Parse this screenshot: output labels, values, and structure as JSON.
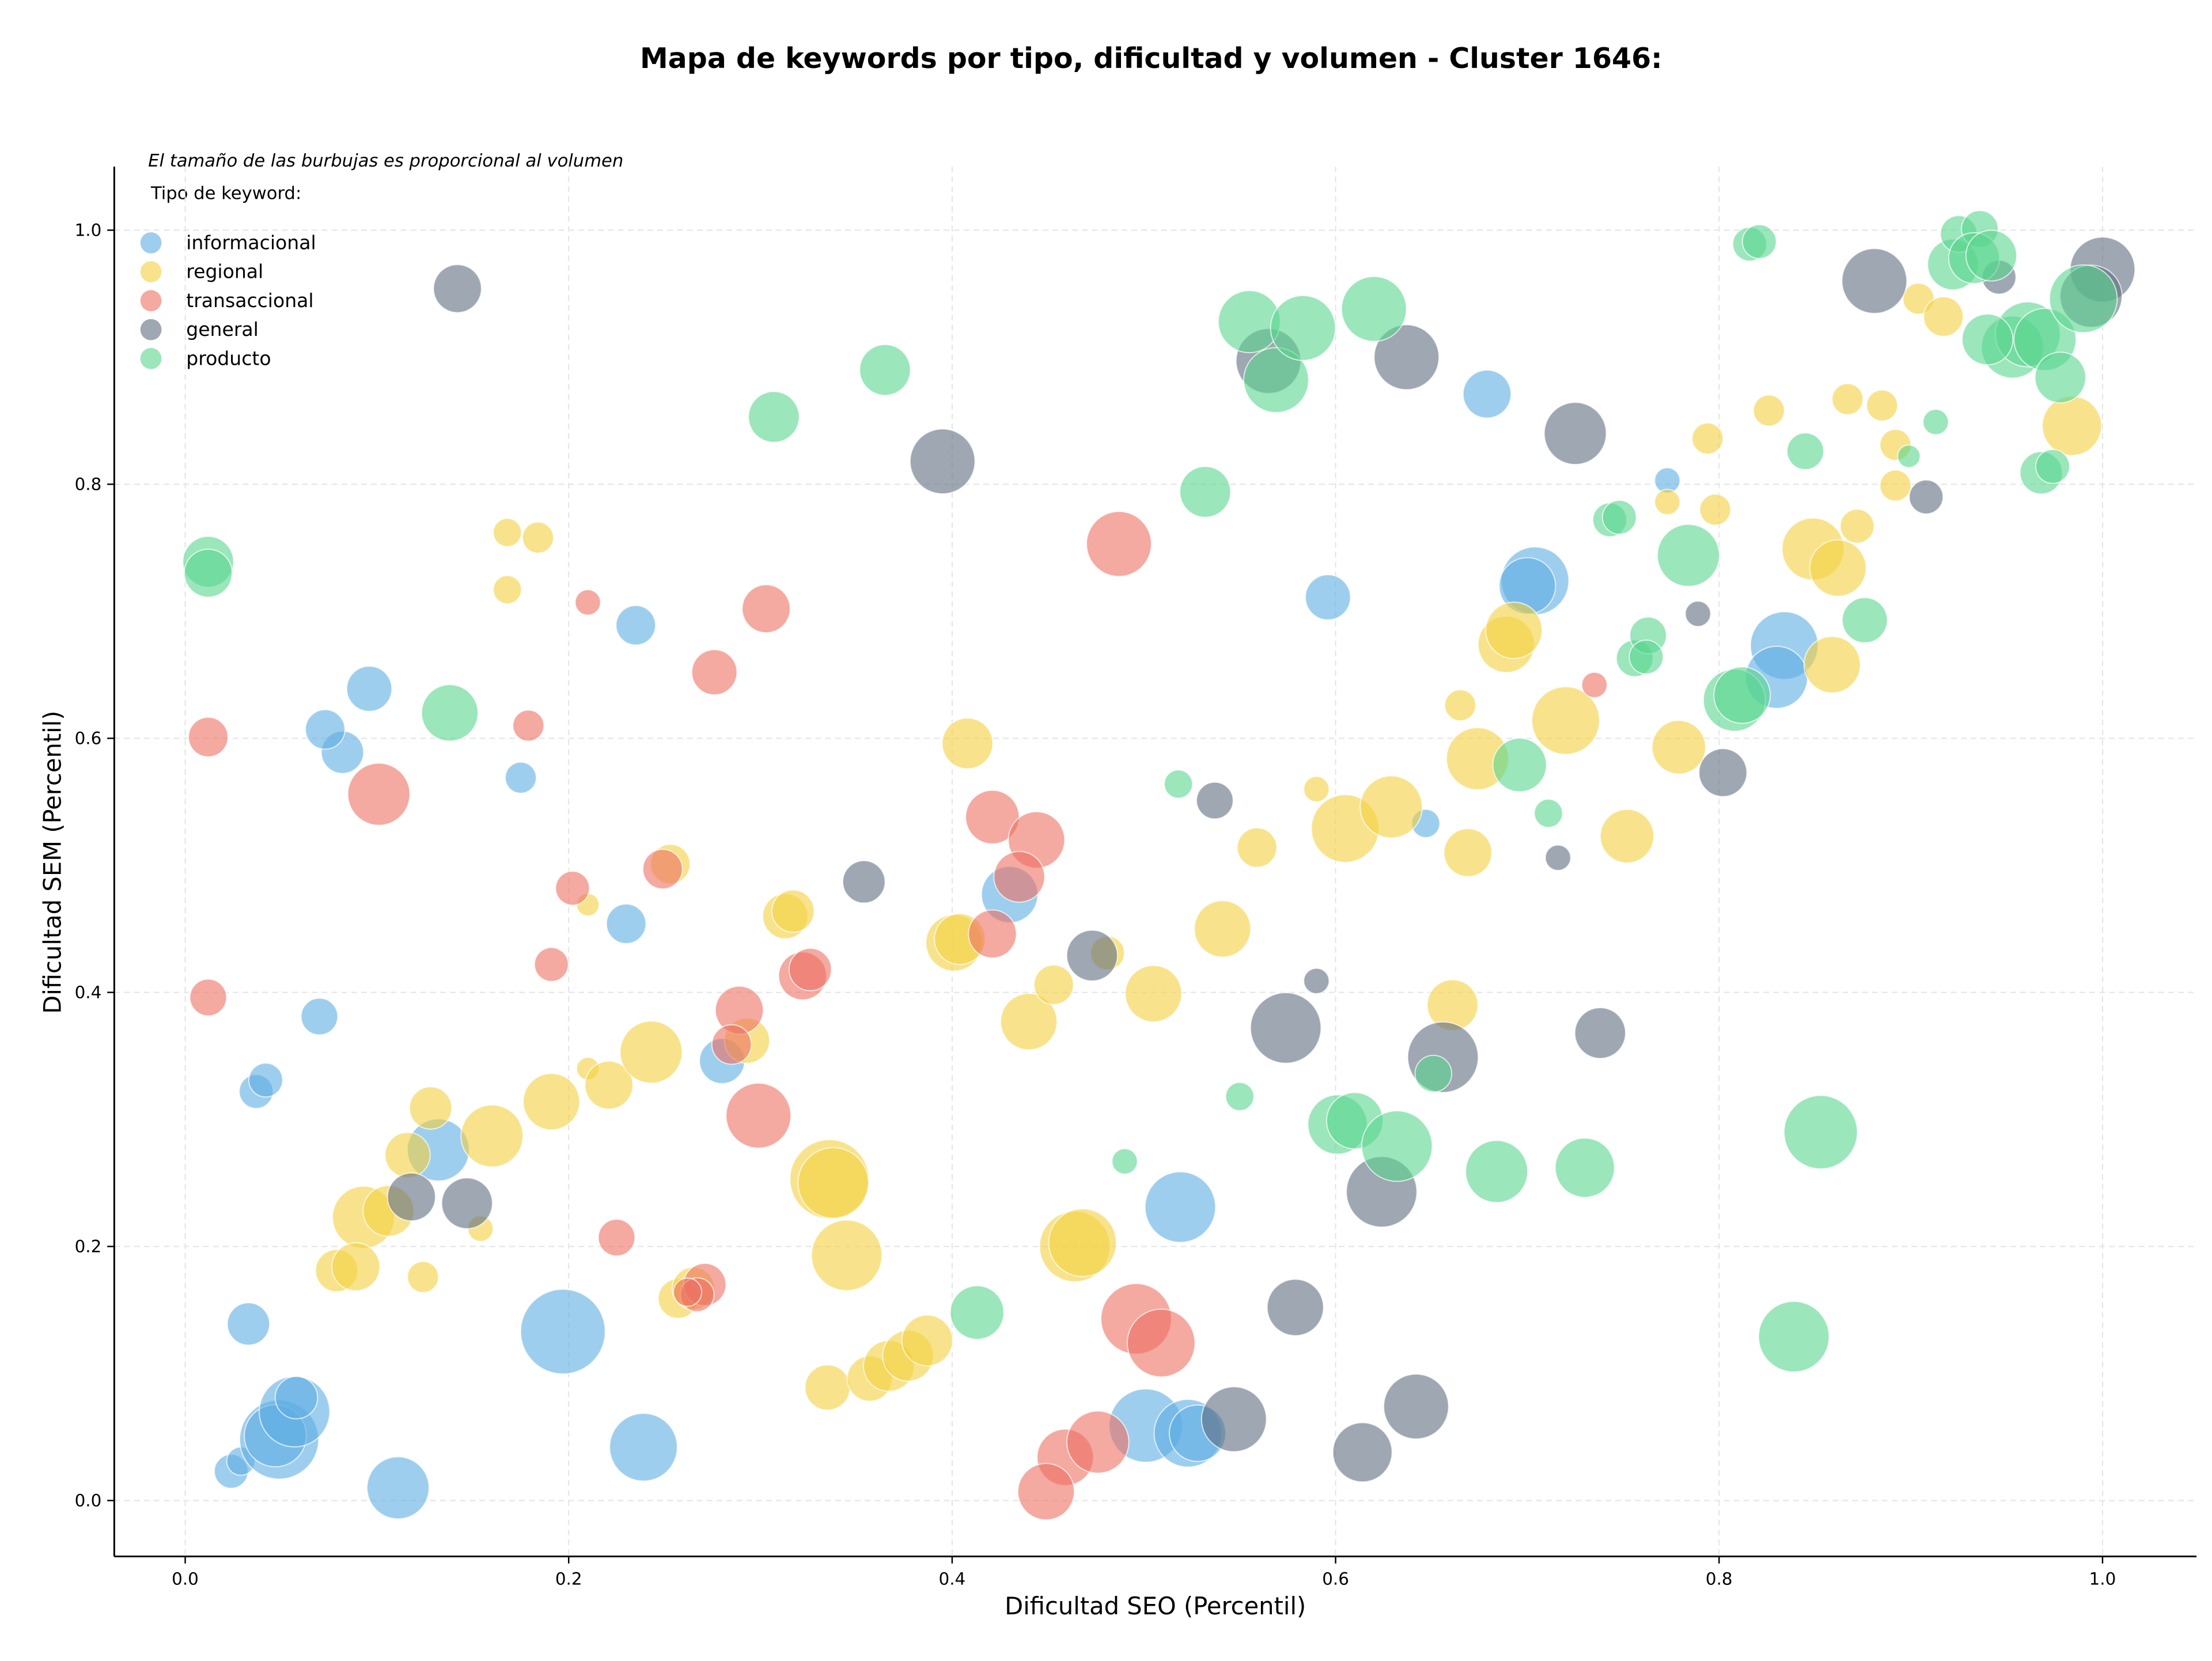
{
  "chart_data": {
    "type": "scatter",
    "title": "Mapa de keywords por tipo, dificultad y volumen - Cluster 1646:",
    "annotation": "El tamaño de las burbujas es proporcional al volumen",
    "legend_title": "Tipo de keyword:",
    "legend": "upper left",
    "xlabel": "Dificultad SEO (Percentil)",
    "ylabel": "Dificultad SEM (Percentil)",
    "grid": true,
    "xlim": [
      -0.037,
      1.049
    ],
    "ylim": [
      -0.044,
      1.05
    ],
    "xticks": [
      {
        "value": 0,
        "label": "0.0"
      },
      0.2,
      0.4,
      0.6,
      0.8,
      {
        "value": 1,
        "label": "1.0"
      }
    ],
    "yticks": [
      {
        "value": 0,
        "label": "0.0"
      },
      0.2,
      0.4,
      0.6,
      0.8,
      {
        "value": 1,
        "label": "1.0"
      }
    ],
    "series": [
      {
        "name": "informacional",
        "color": "#5DADE2",
        "x": [
          0.024,
          0.029,
          0.049,
          0.047,
          0.057,
          0.058,
          0.111,
          0.239,
          0.197,
          0.033,
          0.037,
          0.042,
          0.07,
          0.082,
          0.073,
          0.096,
          0.175,
          0.235,
          0.23,
          0.132,
          0.28,
          0.43,
          0.519,
          0.501,
          0.523,
          0.528,
          0.596,
          0.679,
          0.704,
          0.7,
          0.647,
          0.773,
          0.834,
          0.83
        ],
        "values": [
          0.023,
          0.031,
          0.048,
          0.051,
          0.07,
          0.081,
          0.01,
          0.042,
          0.133,
          0.139,
          0.322,
          0.331,
          0.381,
          0.589,
          0.607,
          0.639,
          0.569,
          0.689,
          0.454,
          0.276,
          0.346,
          0.477,
          0.231,
          0.059,
          0.053,
          0.053,
          0.711,
          0.871,
          0.724,
          0.72,
          0.533,
          0.803,
          0.673,
          0.648
        ],
        "sizes": [
          144,
          100,
          784,
          484,
          625,
          225,
          484,
          576,
          900,
          225,
          144,
          144,
          169,
          225,
          196,
          256,
          121,
          196,
          196,
          484,
          256,
          400,
          625,
          676,
          576,
          400,
          256,
          289,
          576,
          400,
          100,
          81,
          576,
          484
        ]
      },
      {
        "name": "regional",
        "color": "#F4D03F",
        "x": [
          0.168,
          0.184,
          0.168,
          0.21,
          0.21,
          0.128,
          0.16,
          0.191,
          0.221,
          0.243,
          0.116,
          0.093,
          0.106,
          0.079,
          0.089,
          0.124,
          0.154,
          0.253,
          0.313,
          0.317,
          0.293,
          0.336,
          0.345,
          0.335,
          0.357,
          0.367,
          0.377,
          0.387,
          0.338,
          0.257,
          0.265,
          0.408,
          0.401,
          0.404,
          0.44,
          0.453,
          0.481,
          0.505,
          0.464,
          0.468,
          0.541,
          0.559,
          0.59,
          0.605,
          0.629,
          0.665,
          0.669,
          0.661,
          0.674,
          0.689,
          0.693,
          0.72,
          0.752,
          0.779,
          0.773,
          0.798,
          0.794,
          0.826,
          0.849,
          0.862,
          0.859,
          0.872,
          0.867,
          0.885,
          0.892,
          0.892,
          0.904,
          0.917,
          0.984
        ],
        "values": [
          0.762,
          0.758,
          0.717,
          0.469,
          0.34,
          0.309,
          0.287,
          0.314,
          0.327,
          0.353,
          0.272,
          0.223,
          0.228,
          0.181,
          0.184,
          0.176,
          0.214,
          0.501,
          0.46,
          0.464,
          0.362,
          0.253,
          0.193,
          0.089,
          0.096,
          0.106,
          0.114,
          0.126,
          0.25,
          0.159,
          0.167,
          0.596,
          0.439,
          0.442,
          0.377,
          0.406,
          0.431,
          0.399,
          0.2,
          0.203,
          0.45,
          0.514,
          0.56,
          0.529,
          0.546,
          0.626,
          0.51,
          0.39,
          0.584,
          0.674,
          0.685,
          0.614,
          0.523,
          0.593,
          0.786,
          0.78,
          0.836,
          0.858,
          0.749,
          0.734,
          0.658,
          0.767,
          0.867,
          0.862,
          0.831,
          0.799,
          0.946,
          0.932,
          0.846
        ],
        "sizes": [
          100,
          121,
          100,
          64,
          64,
          225,
          484,
          400,
          289,
          484,
          256,
          484,
          324,
          225,
          289,
          121,
          81,
          196,
          256,
          225,
          256,
          784,
          625,
          256,
          256,
          324,
          324,
          324,
          625,
          196,
          225,
          324,
          400,
          324,
          400,
          196,
          144,
          400,
          625,
          576,
          400,
          196,
          81,
          576,
          484,
          121,
          289,
          324,
          484,
          400,
          400,
          576,
          361,
          361,
          81,
          121,
          121,
          121,
          484,
          400,
          400,
          144,
          121,
          121,
          121,
          121,
          121,
          196,
          441
        ]
      },
      {
        "name": "transaccional",
        "color": "#EC7063",
        "x": [
          0.012,
          0.012,
          0.101,
          0.179,
          0.21,
          0.202,
          0.191,
          0.249,
          0.276,
          0.303,
          0.225,
          0.289,
          0.285,
          0.299,
          0.322,
          0.326,
          0.271,
          0.267,
          0.262,
          0.421,
          0.444,
          0.435,
          0.421,
          0.487,
          0.496,
          0.509,
          0.459,
          0.449,
          0.476,
          0.735
        ],
        "values": [
          0.601,
          0.396,
          0.556,
          0.61,
          0.707,
          0.482,
          0.422,
          0.497,
          0.652,
          0.702,
          0.207,
          0.386,
          0.359,
          0.303,
          0.413,
          0.418,
          0.17,
          0.162,
          0.164,
          0.538,
          0.52,
          0.491,
          0.446,
          0.753,
          0.143,
          0.124,
          0.034,
          0.007,
          0.046,
          0.642
        ],
        "sizes": [
          196,
          169,
          484,
          121,
          81,
          144,
          144,
          196,
          256,
          289,
          169,
          289,
          196,
          529,
          289,
          225,
          225,
          144,
          100,
          361,
          400,
          324,
          289,
          529,
          625,
          576,
          400,
          400,
          484,
          81
        ]
      },
      {
        "name": "general",
        "color": "#5D6D7E",
        "x": [
          0.142,
          0.395,
          0.118,
          0.147,
          0.354,
          0.473,
          0.537,
          0.59,
          0.574,
          0.579,
          0.547,
          0.614,
          0.642,
          0.624,
          0.656,
          0.565,
          0.637,
          0.725,
          0.738,
          0.716,
          0.789,
          0.802,
          0.881,
          0.908,
          0.946,
          1.0,
          0.994
        ],
        "values": [
          0.954,
          0.818,
          0.239,
          0.234,
          0.487,
          0.429,
          0.551,
          0.409,
          0.372,
          0.152,
          0.064,
          0.038,
          0.074,
          0.243,
          0.349,
          0.897,
          0.9,
          0.84,
          0.368,
          0.506,
          0.698,
          0.573,
          0.96,
          0.79,
          0.963,
          0.969,
          0.948
        ],
        "sizes": [
          289,
          529,
          289,
          324,
          225,
          324,
          169,
          81,
          625,
          400,
          529,
          441,
          529,
          625,
          625,
          529,
          529,
          484,
          324,
          81,
          81,
          289,
          529,
          144,
          144,
          529,
          484
        ]
      },
      {
        "name": "producto",
        "color": "#58D68D",
        "x": [
          0.012,
          0.012,
          0.138,
          0.307,
          0.365,
          0.413,
          0.532,
          0.555,
          0.569,
          0.583,
          0.62,
          0.518,
          0.55,
          0.49,
          0.601,
          0.61,
          0.632,
          0.651,
          0.684,
          0.73,
          0.696,
          0.711,
          0.743,
          0.748,
          0.784,
          0.756,
          0.763,
          0.762,
          0.808,
          0.812,
          0.839,
          0.853,
          0.876,
          0.845,
          0.816,
          0.821,
          0.913,
          0.899,
          0.922,
          0.925,
          0.936,
          0.933,
          0.942,
          0.953,
          0.961,
          0.97,
          0.94,
          0.978,
          0.99,
          0.968,
          0.974
        ],
        "values": [
          0.739,
          0.73,
          0.62,
          0.853,
          0.89,
          0.148,
          0.794,
          0.928,
          0.882,
          0.923,
          0.938,
          0.564,
          0.318,
          0.267,
          0.296,
          0.299,
          0.279,
          0.336,
          0.259,
          0.262,
          0.579,
          0.541,
          0.772,
          0.774,
          0.744,
          0.663,
          0.681,
          0.664,
          0.63,
          0.634,
          0.129,
          0.29,
          0.693,
          0.826,
          0.989,
          0.991,
          0.849,
          0.822,
          0.973,
          0.997,
          1.001,
          0.978,
          0.98,
          0.908,
          0.918,
          0.914,
          0.914,
          0.884,
          0.946,
          0.809,
          0.814
        ],
        "sizes": [
          324,
          289,
          400,
          324,
          324,
          361,
          324,
          484,
          529,
          529,
          529,
          100,
          100,
          81,
          441,
          400,
          625,
          169,
          484,
          441,
          361,
          100,
          144,
          144,
          484,
          169,
          169,
          144,
          484,
          400,
          625,
          676,
          256,
          169,
          144,
          144,
          81,
          64,
          324,
          169,
          169,
          324,
          324,
          484,
          529,
          484,
          324,
          324,
          576,
          225,
          144
        ]
      }
    ]
  }
}
